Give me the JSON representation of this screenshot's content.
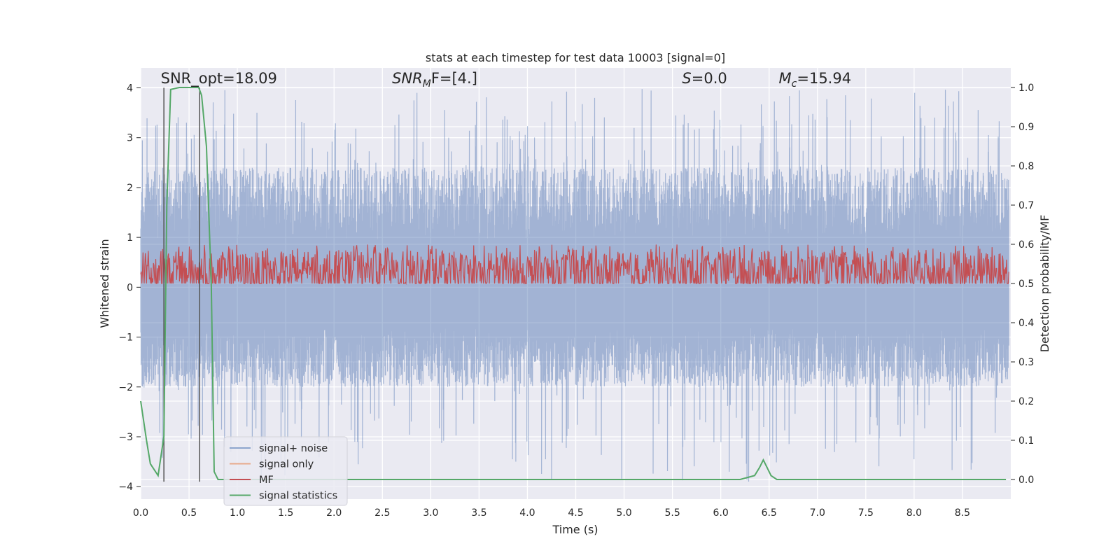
{
  "chart_data": {
    "type": "line",
    "title": "stats at each timestep for test data 10003 [signal=0]",
    "xlabel": "Time (s)",
    "ylabel": "Whitened strain",
    "y2label": "Detection probability/MF",
    "xlim": [
      0.0,
      9.0
    ],
    "ylim": [
      -4.25,
      4.4
    ],
    "y2lim": [
      -0.05,
      1.05
    ],
    "xticks": [
      0.0,
      0.5,
      1.0,
      1.5,
      2.0,
      2.5,
      3.0,
      3.5,
      4.0,
      4.5,
      5.0,
      5.5,
      6.0,
      6.5,
      7.0,
      7.5,
      8.0,
      8.5
    ],
    "xtick_labels": [
      "0.0",
      "0.5",
      "1.0",
      "1.5",
      "2.0",
      "2.5",
      "3.0",
      "3.5",
      "4.0",
      "4.5",
      "5.0",
      "5.5",
      "6.0",
      "6.5",
      "7.0",
      "7.5",
      "8.0",
      "8.5"
    ],
    "yticks": [
      -4,
      -3,
      -2,
      -1,
      0,
      1,
      2,
      3,
      4
    ],
    "ytick_labels": [
      "−4",
      "−3",
      "−2",
      "−1",
      "0",
      "1",
      "2",
      "3",
      "4"
    ],
    "y2ticks": [
      0.0,
      0.1,
      0.2,
      0.3,
      0.4,
      0.5,
      0.6,
      0.7,
      0.8,
      0.9,
      1.0
    ],
    "y2tick_labels": [
      "0.0",
      "0.1",
      "0.2",
      "0.3",
      "0.4",
      "0.5",
      "0.6",
      "0.7",
      "0.8",
      "0.9",
      "1.0"
    ],
    "grid": true,
    "annotations": {
      "snr_opt": {
        "text": "SNR_opt=18.09",
        "x": 0.2,
        "y": 4.05
      },
      "snr_mf": {
        "base": "SNR",
        "sub": "M",
        "rest": "F=[4.]",
        "x": 2.6,
        "y": 4.05
      },
      "s": {
        "base": "S",
        "rest": "=0.0",
        "x": 5.6,
        "y": 4.05
      },
      "mc": {
        "base": "M",
        "sub": "c",
        "rest": "=15.94",
        "x": 6.6,
        "y": 4.05
      }
    },
    "vlines": [
      {
        "x": 0.24,
        "ymin": -3.9,
        "ymax": 4.0
      },
      {
        "x": 0.61,
        "ymin": -3.9,
        "ymax": 4.0
      }
    ],
    "series": [
      {
        "name": "signal+ noise",
        "color": "#4c72b0",
        "axis": "left",
        "kind": "noise",
        "amplitude_envelope": {
          "typical_max": 2.4,
          "typical_min": -2.0,
          "peak_max": 4.0,
          "peak_min": -3.9
        }
      },
      {
        "name": "signal only",
        "color": "#dd8452",
        "axis": "left",
        "kind": "empty"
      },
      {
        "name": "MF",
        "color": "#c44e52",
        "axis": "right",
        "kind": "noise",
        "amplitude_envelope": {
          "base": 0.52,
          "typical_max": 0.58,
          "min": 0.5,
          "peak_max": 0.6
        }
      },
      {
        "name": "signal statistics",
        "color": "#55a868",
        "axis": "right",
        "kind": "line",
        "x": [
          0.0,
          0.06,
          0.1,
          0.18,
          0.24,
          0.27,
          0.31,
          0.4,
          0.5,
          0.6,
          0.63,
          0.68,
          0.73,
          0.76,
          0.8,
          0.9,
          1.0,
          5.0,
          6.2,
          6.35,
          6.4,
          6.44,
          6.48,
          6.52,
          6.58,
          6.7,
          8.95
        ],
        "values": [
          0.2,
          0.1,
          0.04,
          0.01,
          0.11,
          0.7,
          0.995,
          1.0,
          1.0,
          1.0,
          0.98,
          0.85,
          0.5,
          0.02,
          0.0,
          0.0,
          0.0,
          0.0,
          0.0,
          0.01,
          0.03,
          0.05,
          0.03,
          0.01,
          0.0,
          0.0,
          0.0
        ]
      }
    ],
    "legend": {
      "placement": "lower-left",
      "entries": [
        {
          "label": "signal+ noise",
          "color": "#8da5cd"
        },
        {
          "label": "signal only",
          "color": "#e8a98a"
        },
        {
          "label": "MF",
          "color": "#c44e52"
        },
        {
          "label": "signal statistics",
          "color": "#55a868"
        }
      ]
    },
    "style": {
      "plot_background": "#eaeaf2",
      "grid_color": "#ffffff",
      "vline_color": "#555555"
    }
  }
}
